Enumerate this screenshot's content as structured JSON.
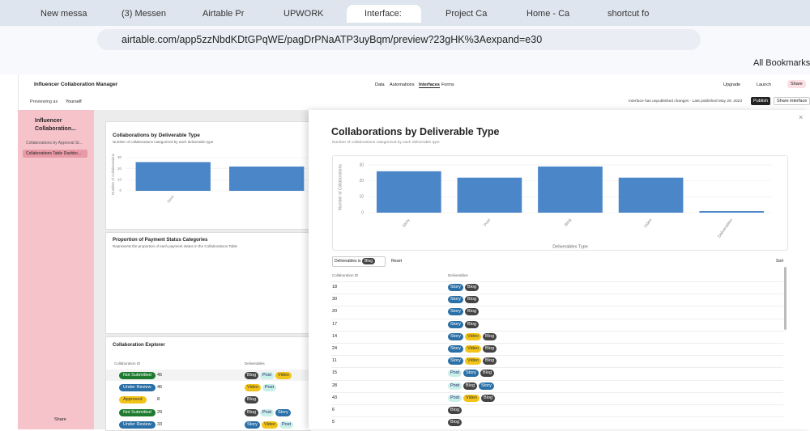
{
  "browser": {
    "tabs": [
      "New messa",
      "(3) Messen",
      "Airtable Pr",
      "UPWORK",
      "Interface:",
      "Project Ca",
      "Home - Ca",
      "shortcut fo"
    ],
    "url": "airtable.com/app5zzNbdKDtGPqWE/pagDrPNaATP3uyBqm/preview?23gHK%3Aexpand=e30",
    "bookmarks": "All Bookmarks"
  },
  "app": {
    "name": "Influencer Collaboration Manager",
    "nav": [
      "Data",
      "Automations",
      "Interfaces",
      "Forms"
    ],
    "upgrade": "Upgrade",
    "launch": "Launch",
    "share": "Share",
    "previewing": "Previewing as",
    "user": "Yourself",
    "status": "Interface has unpublished changes · Last published May 29, 2023",
    "publish": "Publish",
    "share_interface": "Share interface"
  },
  "sidebar": {
    "title": "Influencer Collaboration...",
    "pages": [
      "Collaborations by Approval St...",
      "Collaborations Table Dashbo..."
    ],
    "share": "Share"
  },
  "chart_data": [
    {
      "type": "bar",
      "title": "Collaborations by Deliverable Type",
      "subtitle": "Number of collaborations categorized by each deliverable type",
      "y_label": "Number of Collaborations",
      "categories": [
        "Story",
        null
      ],
      "values": [
        26,
        22
      ],
      "color": "#4a86c8",
      "ylim": [
        0,
        30
      ],
      "yticks": [
        0,
        10,
        20,
        30
      ],
      "grid": true
    },
    {
      "type": "bar",
      "title": "Collaborations by Deliverable Type",
      "subtitle": "Number of collaborations categorized by each deliverable type",
      "y_label": "Number of Collaborations",
      "x_label": "Deliverables Type",
      "categories": [
        "Story",
        "Post",
        "Blog",
        "Video",
        "Deliverables"
      ],
      "values": [
        26,
        22,
        29,
        22,
        1
      ],
      "color": "#4a86c8",
      "ylim": [
        0,
        32
      ],
      "yticks": [
        0,
        10,
        20,
        30
      ],
      "grid": true
    }
  ],
  "background": {
    "payment_title": "Proportion of Payment Status Categories",
    "payment_subtitle": "Represents the proportion of each payment status in the Collaborations Table",
    "explorer": {
      "title": "Collaboration Explorer",
      "columns": [
        "Collaboration ID",
        "Deliverables"
      ],
      "rows": [
        {
          "status": "Not Submitted",
          "id": 45,
          "deliverables": [
            "Blog",
            "Post",
            "Video"
          ]
        },
        {
          "status": "Under Review",
          "id": 46,
          "deliverables": [
            "Video",
            "Post"
          ]
        },
        {
          "status": "Approved",
          "id": 8,
          "deliverables": [
            "Blog"
          ]
        },
        {
          "status": "Not Submitted",
          "id": 29,
          "deliverables": [
            "Blog",
            "Post",
            "Story"
          ]
        },
        {
          "status": "Under Review",
          "id": 33,
          "deliverables": [
            "Story",
            "Video",
            "Post"
          ]
        }
      ]
    }
  },
  "modal": {
    "filter": {
      "label": "Deliverables is",
      "value": "Blog"
    },
    "reset": "Reset",
    "sort": "Sort",
    "columns": [
      "Collaboration ID",
      "Deliverables"
    ],
    "rows": [
      {
        "id": 18,
        "deliverables": [
          "Story",
          "Blog"
        ]
      },
      {
        "id": 30,
        "deliverables": [
          "Story",
          "Blog"
        ]
      },
      {
        "id": 20,
        "deliverables": [
          "Story",
          "Blog"
        ]
      },
      {
        "id": 17,
        "deliverables": [
          "Story",
          "Blog"
        ]
      },
      {
        "id": 14,
        "deliverables": [
          "Story",
          "Video",
          "Blog"
        ]
      },
      {
        "id": 24,
        "deliverables": [
          "Story",
          "Video",
          "Blog"
        ]
      },
      {
        "id": 11,
        "deliverables": [
          "Story",
          "Video",
          "Blog"
        ]
      },
      {
        "id": 15,
        "deliverables": [
          "Post",
          "Story",
          "Blog"
        ]
      },
      {
        "id": 28,
        "deliverables": [
          "Post",
          "Blog",
          "Story"
        ]
      },
      {
        "id": 43,
        "deliverables": [
          "Post",
          "Video",
          "Blog"
        ]
      },
      {
        "id": 6,
        "deliverables": [
          "Blog"
        ]
      },
      {
        "id": 5,
        "deliverables": [
          "Blog"
        ]
      }
    ]
  },
  "tag_colors": {
    "Story": [
      "#2a6fa6",
      "#fff"
    ],
    "Blog": [
      "#444",
      "#fff"
    ],
    "Video": [
      "#f2c418",
      "#333"
    ],
    "Post": [
      "#c9f0e8",
      "#226"
    ]
  },
  "status_colors": {
    "Not Submitted": [
      "#1d7a2e",
      "#fff"
    ],
    "Under Review": [
      "#2a6fa6",
      "#fff"
    ],
    "Approved": [
      "#f2c418",
      "#333"
    ]
  }
}
